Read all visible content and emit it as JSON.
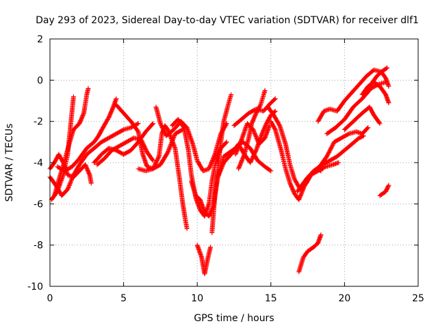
{
  "chart_data": {
    "type": "scatter",
    "title": "Day 293 of 2023, Sidereal Day-to-day VTEC variation (SDTVAR) for receiver dlf1",
    "xlabel": "GPS time / hours",
    "ylabel": "SDTVAR / TECUs",
    "xlim": [
      0,
      25
    ],
    "ylim": [
      -10,
      2
    ],
    "xticks": [
      "0",
      "5",
      "10",
      "15",
      "20",
      "25"
    ],
    "yticks": [
      "-10",
      "-8",
      "-6",
      "-4",
      "-2",
      "0",
      "2"
    ],
    "grid": true,
    "legend": "none",
    "marker": "+",
    "color": "#ff0000",
    "series": [
      {
        "points": [
          [
            0.0,
            -4.7
          ],
          [
            0.4,
            -5.1
          ],
          [
            0.8,
            -5.6
          ],
          [
            1.2,
            -5.3
          ],
          [
            1.6,
            -4.6
          ],
          [
            2.0,
            -4.1
          ],
          [
            2.5,
            -3.6
          ],
          [
            3.0,
            -3.3
          ],
          [
            3.5,
            -3.0
          ],
          [
            4.0,
            -2.8
          ],
          [
            4.5,
            -2.6
          ],
          [
            5.0,
            -2.4
          ],
          [
            5.5,
            -2.3
          ],
          [
            6.0,
            -2.1
          ]
        ]
      },
      {
        "points": [
          [
            0.1,
            -5.8
          ],
          [
            0.5,
            -5.4
          ],
          [
            0.9,
            -4.6
          ],
          [
            1.2,
            -3.6
          ],
          [
            1.4,
            -2.2
          ],
          [
            1.6,
            -0.8
          ]
        ]
      },
      {
        "points": [
          [
            0.3,
            -5.6
          ],
          [
            0.7,
            -4.6
          ],
          [
            1.0,
            -3.9
          ],
          [
            1.3,
            -3.1
          ],
          [
            1.6,
            -2.4
          ],
          [
            2.0,
            -2.1
          ],
          [
            2.3,
            -1.6
          ],
          [
            2.5,
            -0.7
          ],
          [
            2.6,
            -0.4
          ]
        ]
      },
      {
        "points": [
          [
            0.0,
            -4.3
          ],
          [
            0.3,
            -4.0
          ],
          [
            0.6,
            -3.6
          ],
          [
            0.9,
            -4.0
          ],
          [
            1.2,
            -4.6
          ],
          [
            1.6,
            -4.7
          ],
          [
            2.0,
            -4.4
          ],
          [
            2.4,
            -4.1
          ],
          [
            2.7,
            -4.6
          ],
          [
            2.8,
            -5.0
          ]
        ]
      },
      {
        "points": [
          [
            0.5,
            -4.2
          ],
          [
            1.0,
            -4.4
          ],
          [
            1.5,
            -4.2
          ],
          [
            2.0,
            -3.8
          ],
          [
            2.5,
            -3.3
          ],
          [
            3.0,
            -3.0
          ],
          [
            3.3,
            -2.7
          ],
          [
            3.6,
            -2.3
          ],
          [
            4.0,
            -1.8
          ],
          [
            4.3,
            -1.3
          ],
          [
            4.5,
            -0.9
          ]
        ]
      },
      {
        "points": [
          [
            3.0,
            -4.0
          ],
          [
            3.5,
            -3.6
          ],
          [
            4.0,
            -3.3
          ],
          [
            4.5,
            -3.4
          ],
          [
            5.0,
            -3.6
          ],
          [
            5.5,
            -3.4
          ],
          [
            6.0,
            -3.0
          ],
          [
            6.5,
            -2.5
          ],
          [
            7.0,
            -2.1
          ]
        ]
      },
      {
        "points": [
          [
            3.2,
            -4.1
          ],
          [
            3.7,
            -3.8
          ],
          [
            4.2,
            -3.4
          ],
          [
            4.7,
            -3.2
          ],
          [
            5.2,
            -3.0
          ],
          [
            5.7,
            -2.8
          ],
          [
            6.2,
            -2.9
          ],
          [
            6.6,
            -3.5
          ],
          [
            7.0,
            -3.9
          ]
        ]
      },
      {
        "points": [
          [
            4.5,
            -1.2
          ],
          [
            5.0,
            -1.6
          ],
          [
            5.5,
            -2.0
          ],
          [
            6.0,
            -2.5
          ],
          [
            6.3,
            -3.6
          ],
          [
            6.6,
            -4.2
          ],
          [
            7.0,
            -4.3
          ],
          [
            7.5,
            -4.1
          ],
          [
            8.0,
            -3.5
          ],
          [
            8.5,
            -2.6
          ],
          [
            9.0,
            -2.4
          ]
        ]
      },
      {
        "points": [
          [
            6.0,
            -4.3
          ],
          [
            6.5,
            -4.4
          ],
          [
            7.0,
            -4.3
          ],
          [
            7.4,
            -3.7
          ],
          [
            7.6,
            -2.6
          ],
          [
            7.8,
            -2.2
          ],
          [
            8.0,
            -2.4
          ],
          [
            8.5,
            -3.3
          ],
          [
            8.8,
            -4.8
          ],
          [
            9.0,
            -5.9
          ],
          [
            9.2,
            -6.8
          ],
          [
            9.3,
            -7.2
          ]
        ]
      },
      {
        "points": [
          [
            7.2,
            -1.3
          ],
          [
            7.5,
            -2.1
          ],
          [
            7.9,
            -2.7
          ],
          [
            8.4,
            -2.4
          ],
          [
            8.9,
            -2.0
          ],
          [
            9.3,
            -2.3
          ],
          [
            9.7,
            -3.1
          ],
          [
            10.0,
            -3.9
          ],
          [
            10.4,
            -4.4
          ],
          [
            10.8,
            -4.3
          ],
          [
            11.2,
            -3.6
          ],
          [
            11.6,
            -2.6
          ],
          [
            12.0,
            -2.1
          ]
        ]
      },
      {
        "points": [
          [
            8.3,
            -2.2
          ],
          [
            8.7,
            -1.9
          ],
          [
            9.1,
            -2.3
          ],
          [
            9.4,
            -3.4
          ],
          [
            9.6,
            -4.6
          ],
          [
            9.9,
            -5.7
          ],
          [
            10.2,
            -6.3
          ],
          [
            10.5,
            -6.6
          ],
          [
            10.8,
            -6.0
          ],
          [
            11.0,
            -4.9
          ],
          [
            11.3,
            -3.8
          ],
          [
            11.6,
            -3.3
          ],
          [
            12.0,
            -3.0
          ]
        ]
      },
      {
        "points": [
          [
            9.6,
            -4.9
          ],
          [
            9.9,
            -5.6
          ],
          [
            10.2,
            -5.8
          ],
          [
            10.5,
            -6.4
          ],
          [
            10.8,
            -6.6
          ],
          [
            11.1,
            -6.1
          ],
          [
            11.4,
            -4.7
          ],
          [
            11.8,
            -3.7
          ],
          [
            12.2,
            -3.5
          ],
          [
            12.6,
            -3.3
          ],
          [
            13.1,
            -3.0
          ],
          [
            13.6,
            -3.3
          ],
          [
            14.1,
            -3.9
          ],
          [
            14.6,
            -4.2
          ],
          [
            15.0,
            -4.4
          ]
        ]
      },
      {
        "points": [
          [
            10.0,
            -8.0
          ],
          [
            10.3,
            -8.6
          ],
          [
            10.5,
            -9.4
          ],
          [
            10.7,
            -8.7
          ],
          [
            10.9,
            -8.1
          ]
        ]
      },
      {
        "points": [
          [
            11.0,
            -7.4
          ],
          [
            11.2,
            -5.6
          ],
          [
            11.4,
            -4.3
          ],
          [
            11.6,
            -3.0
          ],
          [
            11.8,
            -2.0
          ],
          [
            12.1,
            -1.2
          ],
          [
            12.3,
            -0.7
          ]
        ]
      },
      {
        "points": [
          [
            11.4,
            -4.7
          ],
          [
            11.8,
            -4.0
          ],
          [
            12.3,
            -3.6
          ],
          [
            12.8,
            -3.1
          ],
          [
            13.2,
            -3.6
          ],
          [
            13.6,
            -4.0
          ],
          [
            14.0,
            -3.4
          ],
          [
            14.4,
            -2.6
          ],
          [
            14.7,
            -2.1
          ],
          [
            15.0,
            -1.7
          ],
          [
            15.3,
            -1.5
          ]
        ]
      },
      {
        "points": [
          [
            12.6,
            -3.6
          ],
          [
            13.0,
            -2.9
          ],
          [
            13.4,
            -2.1
          ],
          [
            13.8,
            -2.4
          ],
          [
            14.2,
            -3.1
          ],
          [
            14.6,
            -2.8
          ],
          [
            14.9,
            -2.2
          ]
        ]
      },
      {
        "points": [
          [
            12.8,
            -4.3
          ],
          [
            13.2,
            -3.6
          ],
          [
            13.5,
            -2.8
          ],
          [
            13.7,
            -2.1
          ],
          [
            14.0,
            -1.6
          ],
          [
            14.3,
            -1.2
          ],
          [
            14.6,
            -0.5
          ]
        ]
      },
      {
        "points": [
          [
            12.5,
            -2.2
          ],
          [
            13.0,
            -1.9
          ],
          [
            13.5,
            -1.6
          ],
          [
            14.0,
            -1.4
          ],
          [
            14.5,
            -1.5
          ],
          [
            15.0,
            -1.1
          ],
          [
            15.3,
            -0.9
          ]
        ]
      },
      {
        "points": [
          [
            14.8,
            -1.3
          ],
          [
            15.2,
            -1.7
          ],
          [
            15.6,
            -2.2
          ],
          [
            16.0,
            -3.1
          ],
          [
            16.3,
            -4.1
          ],
          [
            16.6,
            -4.8
          ],
          [
            17.0,
            -5.3
          ],
          [
            17.4,
            -5.0
          ],
          [
            17.8,
            -4.5
          ],
          [
            18.2,
            -4.3
          ],
          [
            18.4,
            -4.4
          ]
        ]
      },
      {
        "points": [
          [
            15.0,
            -2.0
          ],
          [
            15.3,
            -2.4
          ],
          [
            15.7,
            -3.4
          ],
          [
            16.0,
            -4.3
          ],
          [
            16.3,
            -5.0
          ],
          [
            16.6,
            -5.5
          ],
          [
            16.9,
            -5.8
          ],
          [
            17.3,
            -5.1
          ],
          [
            17.7,
            -4.6
          ],
          [
            18.2,
            -4.4
          ],
          [
            18.7,
            -4.2
          ],
          [
            19.2,
            -4.1
          ],
          [
            19.6,
            -4.0
          ]
        ]
      },
      {
        "points": [
          [
            16.8,
            -5.4
          ],
          [
            17.3,
            -4.9
          ],
          [
            17.8,
            -4.5
          ],
          [
            18.3,
            -4.2
          ],
          [
            18.8,
            -3.7
          ],
          [
            19.3,
            -3.0
          ],
          [
            19.8,
            -2.8
          ],
          [
            20.3,
            -2.6
          ],
          [
            20.8,
            -2.5
          ],
          [
            21.2,
            -2.6
          ],
          [
            21.6,
            -2.3
          ]
        ]
      },
      {
        "points": [
          [
            17.4,
            -4.8
          ],
          [
            17.9,
            -4.4
          ],
          [
            18.5,
            -4.1
          ],
          [
            19.0,
            -3.9
          ],
          [
            19.5,
            -3.7
          ],
          [
            20.0,
            -3.4
          ],
          [
            20.5,
            -3.1
          ],
          [
            21.0,
            -2.8
          ],
          [
            21.3,
            -2.7
          ]
        ]
      },
      {
        "points": [
          [
            18.2,
            -2.0
          ],
          [
            18.6,
            -1.5
          ],
          [
            19.0,
            -1.4
          ],
          [
            19.5,
            -1.5
          ],
          [
            20.0,
            -1.0
          ],
          [
            20.5,
            -0.6
          ],
          [
            21.0,
            -0.2
          ],
          [
            21.5,
            0.2
          ],
          [
            22.0,
            0.5
          ],
          [
            22.5,
            0.4
          ],
          [
            22.9,
            0.6
          ]
        ]
      },
      {
        "points": [
          [
            18.8,
            -2.6
          ],
          [
            19.4,
            -2.3
          ],
          [
            20.0,
            -1.9
          ],
          [
            20.6,
            -1.3
          ],
          [
            21.2,
            -0.9
          ],
          [
            21.8,
            -0.4
          ],
          [
            22.3,
            -0.2
          ],
          [
            22.8,
            -0.1
          ]
        ]
      },
      {
        "points": [
          [
            20.0,
            -2.4
          ],
          [
            20.6,
            -2.0
          ],
          [
            21.2,
            -1.6
          ],
          [
            21.7,
            -1.3
          ],
          [
            22.0,
            -1.7
          ],
          [
            22.4,
            -2.1
          ]
        ]
      },
      {
        "points": [
          [
            21.2,
            -0.7
          ],
          [
            21.6,
            -0.3
          ],
          [
            22.0,
            -0.1
          ],
          [
            22.4,
            -0.3
          ],
          [
            22.8,
            -0.7
          ],
          [
            23.0,
            -1.1
          ]
        ]
      },
      {
        "points": [
          [
            21.8,
            -0.2
          ],
          [
            22.2,
            0.2
          ],
          [
            22.5,
            0.4
          ],
          [
            22.8,
            0.1
          ],
          [
            23.0,
            -0.3
          ]
        ]
      },
      {
        "points": [
          [
            22.4,
            -5.6
          ],
          [
            22.8,
            -5.4
          ],
          [
            23.0,
            -5.1
          ]
        ]
      },
      {
        "points": [
          [
            16.9,
            -9.3
          ],
          [
            17.2,
            -8.6
          ],
          [
            17.5,
            -8.3
          ],
          [
            17.9,
            -8.1
          ],
          [
            18.2,
            -7.9
          ],
          [
            18.4,
            -7.5
          ]
        ]
      }
    ]
  }
}
